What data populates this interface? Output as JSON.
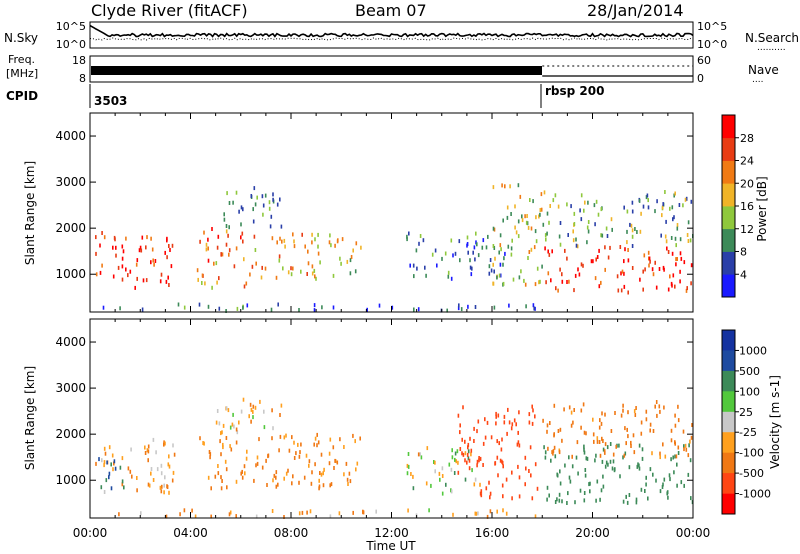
{
  "header": {
    "station": "Clyde River (fitACF)",
    "beam": "Beam 07",
    "date": "28/Jan/2014"
  },
  "side_labels": {
    "nsky": "N.Sky",
    "nsearch": "N.Search",
    "nsearch_dots": "..........",
    "freq": "Freq.",
    "freq_unit": "[MHz]",
    "cpid": "CPID",
    "nave": "Nave",
    "nave_dots": "....",
    "noise_top": "10^5",
    "noise_bottom": "10^0",
    "freq_top": "18",
    "freq_bottom": "8",
    "nave_top": "60",
    "nave_bottom": "0"
  },
  "cpid_labels": [
    {
      "text": "3503",
      "hour": 0
    },
    {
      "text": "rbsp 200",
      "hour": 18
    }
  ],
  "xaxis": {
    "title": "Time UT",
    "ticks": [
      "00:00",
      "04:00",
      "08:00",
      "12:00",
      "16:00",
      "20:00",
      "00:00"
    ]
  },
  "colors": {
    "power": [
      "#1a1aff",
      "#2a3fa8",
      "#3c8a58",
      "#8fc83c",
      "#f0b428",
      "#f07a14",
      "#e83c14",
      "#ff0000"
    ],
    "velocity": [
      "#ff0000",
      "#ff4614",
      "#f07814",
      "#ffa01e",
      "#c8c8c8",
      "#52c83c",
      "#3c8a58",
      "#1e4ba0",
      "#1432a0"
    ]
  },
  "chart_data": [
    {
      "type": "heatmap",
      "panel": "power",
      "xlabel": "Time UT",
      "ylabel": "Slant Range [km]",
      "xlim": [
        0,
        24
      ],
      "ylim": [
        180,
        4500
      ],
      "yticks": [
        "1000",
        "2000",
        "3000",
        "4000"
      ],
      "colorbar_label": "Power [dB]",
      "colorbar_ticks": [
        "4",
        "8",
        "12",
        "16",
        "20",
        "24",
        "28"
      ],
      "colorbar_range": [
        0,
        32
      ],
      "scatter_regions": [
        {
          "t0": 0.2,
          "t1": 3.4,
          "r0": 700,
          "r1": 1900,
          "level": 28
        },
        {
          "t0": 4.2,
          "t1": 6.2,
          "r0": 700,
          "r1": 2000,
          "level": 22
        },
        {
          "t0": 6.2,
          "t1": 9.2,
          "r0": 900,
          "r1": 1900,
          "level": 20
        },
        {
          "t0": 9.5,
          "t1": 10.8,
          "r0": 900,
          "r1": 1850,
          "level": 18
        },
        {
          "t0": 5.0,
          "t1": 7.6,
          "r0": 2000,
          "r1": 2900,
          "level": 10
        },
        {
          "t0": 12.5,
          "t1": 16.5,
          "r0": 900,
          "r1": 1900,
          "level": 8
        },
        {
          "t0": 16.0,
          "t1": 18.0,
          "r0": 700,
          "r1": 3000,
          "level": 16
        },
        {
          "t0": 18.0,
          "t1": 24.0,
          "r0": 600,
          "r1": 1600,
          "level": 28
        },
        {
          "t0": 18.0,
          "t1": 24.0,
          "r0": 1600,
          "r1": 2800,
          "level": 12
        },
        {
          "t0": 0.5,
          "t1": 18.0,
          "r0": 200,
          "r1": 350,
          "level": 6
        }
      ]
    },
    {
      "type": "heatmap",
      "panel": "velocity",
      "xlabel": "Time UT",
      "ylabel": "Slant Range [km]",
      "xlim": [
        0,
        24
      ],
      "ylim": [
        180,
        4500
      ],
      "yticks": [
        "1000",
        "2000",
        "3000",
        "4000"
      ],
      "colorbar_label": "Velocity [m s-1]",
      "colorbar_ticks": [
        "1000",
        "500",
        "100",
        "25",
        "-25",
        "-100",
        "-500",
        "-1000"
      ],
      "scatter_regions": [
        {
          "t0": 0.2,
          "t1": 3.4,
          "r0": 700,
          "r1": 1900,
          "level": -100
        },
        {
          "t0": 0.2,
          "t1": 1.5,
          "r0": 800,
          "r1": 1500,
          "level": 500
        },
        {
          "t0": 4.2,
          "t1": 10.8,
          "r0": 800,
          "r1": 2000,
          "level": -150
        },
        {
          "t0": 5.0,
          "t1": 7.6,
          "r0": 2000,
          "r1": 2900,
          "level": -60
        },
        {
          "t0": 12.5,
          "t1": 15.5,
          "r0": 700,
          "r1": 1700,
          "level": 0
        },
        {
          "t0": 14.5,
          "t1": 17.8,
          "r0": 600,
          "r1": 2600,
          "level": -700
        },
        {
          "t0": 18.0,
          "t1": 24.0,
          "r0": 500,
          "r1": 1800,
          "level": 300
        },
        {
          "t0": 18.0,
          "t1": 24.0,
          "r0": 1500,
          "r1": 2700,
          "level": -200
        },
        {
          "t0": 0.5,
          "t1": 18.0,
          "r0": 200,
          "r1": 350,
          "level": -80
        }
      ]
    }
  ]
}
